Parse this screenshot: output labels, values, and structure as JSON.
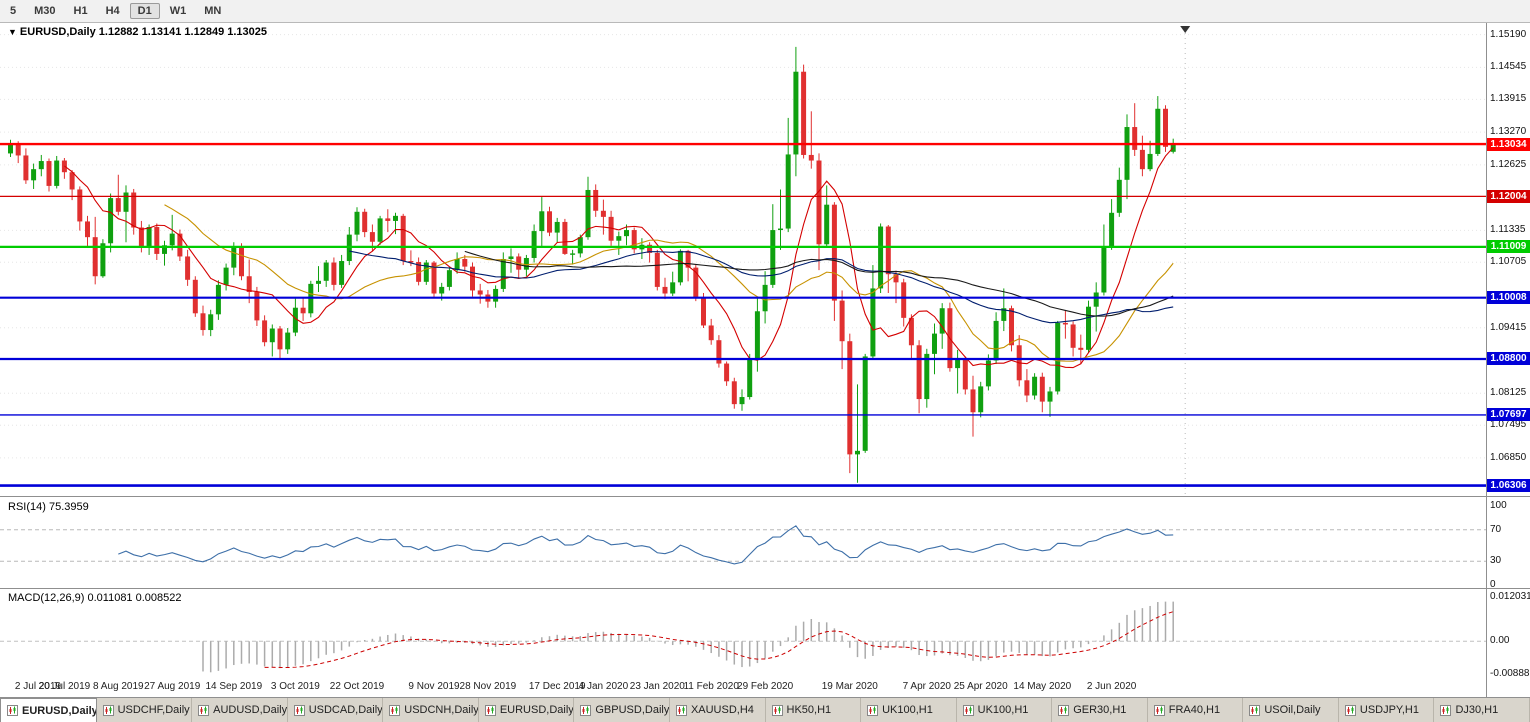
{
  "toolbar": {
    "buttons": [
      {
        "label": "5",
        "active": false
      },
      {
        "label": "M30",
        "active": false
      },
      {
        "label": "H1",
        "active": false
      },
      {
        "label": "H4",
        "active": false
      },
      {
        "label": "D1",
        "active": true
      },
      {
        "label": "W1",
        "active": false
      },
      {
        "label": "MN",
        "active": false
      }
    ]
  },
  "header": {
    "dropdown_icon": "▼",
    "symbol": "EURUSD,Daily",
    "ohlc": "1.12882 1.13141 1.12849 1.13025"
  },
  "price_axis": {
    "labels": [
      "1.15190",
      "1.14545",
      "1.13915",
      "1.13270",
      "1.12625",
      "1.11335",
      "1.10705",
      "1.09415",
      "1.08125",
      "1.07495",
      "1.06850"
    ]
  },
  "hlines": [
    {
      "price": 1.13034,
      "label": "1.13034",
      "color": "#FF0000",
      "width": 2.4
    },
    {
      "price": 1.12004,
      "label": "1.12004",
      "color": "#D40000",
      "width": 1.3
    },
    {
      "price": 1.11009,
      "label": "1.11009",
      "color": "#00CC00",
      "width": 2.2
    },
    {
      "price": 1.10008,
      "label": "1.10008",
      "color": "#0000D8",
      "width": 2.2
    },
    {
      "price": 1.088,
      "label": "1.08800",
      "color": "#0000D8",
      "width": 2.2
    },
    {
      "price": 1.07697,
      "label": "1.07697",
      "color": "#0000D8",
      "width": 1.3
    },
    {
      "price": 1.06306,
      "label": "1.06306",
      "color": "#0000D8",
      "width": 2.6
    }
  ],
  "rsi_panel": {
    "title": "RSI(14)",
    "value": "75.3959",
    "axis": [
      "100",
      "70",
      "30",
      "0"
    ],
    "axis_values": [
      100,
      70,
      30,
      0
    ],
    "levels": [
      70,
      30
    ]
  },
  "macd_panel": {
    "title": "MACD(12,26,9)",
    "value": "0.011081 0.008522",
    "axis": [
      "0.012031",
      "0.00",
      "-0.00888"
    ],
    "axis_values": [
      0.012031,
      0,
      -0.00888
    ]
  },
  "chart_data": {
    "type": "candlestick",
    "symbol": "EURUSD",
    "timeframe": "Daily",
    "current_bar": {
      "open": 1.12882,
      "high": 1.13141,
      "low": 1.12849,
      "close": 1.13025
    },
    "y_range": [
      1.061,
      1.1542
    ],
    "bull_color": "#10A010",
    "bear_color": "#E03030",
    "moving_averages": [
      {
        "period": 8,
        "color": "#D40000"
      },
      {
        "period": 21,
        "color": "#C79200"
      },
      {
        "period": 45,
        "color": "#001E6E"
      },
      {
        "period": 60,
        "color": "#1A1A1A"
      }
    ],
    "indicators": [
      {
        "type": "RSI",
        "period": 14,
        "current": 75.3959,
        "color": "#3D6FA8"
      },
      {
        "type": "MACD",
        "fast": 12,
        "slow": 26,
        "signal": 9,
        "current_macd": 0.011081,
        "current_signal": 0.008522,
        "hist_color": "#ABABAB",
        "signal_color": "#CC0000",
        "scale_max": 0.012031,
        "scale_min": -0.00888
      }
    ],
    "x_labels": [
      {
        "label": "2 Jul 2019",
        "i": 1
      },
      {
        "label": "20 Jul 2019",
        "i": 7
      },
      {
        "label": "8 Aug 2019",
        "i": 14
      },
      {
        "label": "27 Aug 2019",
        "i": 21
      },
      {
        "label": "14 Sep 2019",
        "i": 29
      },
      {
        "label": "3 Oct 2019",
        "i": 37
      },
      {
        "label": "22 Oct 2019",
        "i": 45
      },
      {
        "label": "9 Nov 2019",
        "i": 55
      },
      {
        "label": "28 Nov 2019",
        "i": 62
      },
      {
        "label": "17 Dec 2019",
        "i": 71
      },
      {
        "label": "4 Jan 2020",
        "i": 77
      },
      {
        "label": "23 Jan 2020",
        "i": 84
      },
      {
        "label": "11 Feb 2020",
        "i": 91
      },
      {
        "label": "29 Feb 2020",
        "i": 98
      },
      {
        "label": "19 Mar 2020",
        "i": 109
      },
      {
        "label": "7 Apr 2020",
        "i": 119
      },
      {
        "label": "25 Apr 2020",
        "i": 126
      },
      {
        "label": "14 May 2020",
        "i": 134
      },
      {
        "label": "2 Jun 2020",
        "i": 143
      }
    ],
    "candles": [
      [
        1.1285,
        1.1312,
        1.1278,
        1.1305
      ],
      [
        1.1305,
        1.1309,
        1.1266,
        1.1281
      ],
      [
        1.1281,
        1.1295,
        1.1225,
        1.1232
      ],
      [
        1.1232,
        1.1265,
        1.1215,
        1.1254
      ],
      [
        1.1254,
        1.1282,
        1.124,
        1.127
      ],
      [
        1.127,
        1.1275,
        1.121,
        1.1221
      ],
      [
        1.1221,
        1.128,
        1.1216,
        1.1271
      ],
      [
        1.1271,
        1.1276,
        1.1235,
        1.1248
      ],
      [
        1.1248,
        1.1252,
        1.1193,
        1.1214
      ],
      [
        1.1214,
        1.122,
        1.1133,
        1.1151
      ],
      [
        1.1151,
        1.1162,
        1.1101,
        1.112
      ],
      [
        1.112,
        1.116,
        1.1027,
        1.1043
      ],
      [
        1.1043,
        1.1116,
        1.104,
        1.1108
      ],
      [
        1.1108,
        1.1206,
        1.109,
        1.1197
      ],
      [
        1.1197,
        1.1243,
        1.1163,
        1.117
      ],
      [
        1.117,
        1.1222,
        1.111,
        1.1208
      ],
      [
        1.1208,
        1.1215,
        1.1125,
        1.1139
      ],
      [
        1.1139,
        1.1152,
        1.109,
        1.1099
      ],
      [
        1.1099,
        1.1145,
        1.1085,
        1.114
      ],
      [
        1.114,
        1.1147,
        1.1075,
        1.1087
      ],
      [
        1.1087,
        1.1113,
        1.1064,
        1.1104
      ],
      [
        1.1104,
        1.1164,
        1.1094,
        1.1127
      ],
      [
        1.1127,
        1.1135,
        1.1073,
        1.1082
      ],
      [
        1.1082,
        1.1095,
        1.1024,
        1.1036
      ],
      [
        1.1036,
        1.1043,
        1.0963,
        1.097
      ],
      [
        1.097,
        1.0985,
        1.0926,
        1.0937
      ],
      [
        1.0937,
        1.0977,
        1.0925,
        1.0968
      ],
      [
        1.0968,
        1.1035,
        1.0957,
        1.1026
      ],
      [
        1.1026,
        1.1068,
        1.1015,
        1.106
      ],
      [
        1.106,
        1.111,
        1.1045,
        1.1101
      ],
      [
        1.1101,
        1.1108,
        1.1035,
        1.1043
      ],
      [
        1.1043,
        1.1076,
        1.099,
        1.1012
      ],
      [
        1.1012,
        1.1022,
        1.0945,
        1.0956
      ],
      [
        1.0956,
        1.0966,
        1.0905,
        1.0913
      ],
      [
        1.0913,
        1.0948,
        1.0885,
        1.094
      ],
      [
        1.094,
        1.0945,
        1.0879,
        1.0899
      ],
      [
        1.0899,
        1.0941,
        1.089,
        1.0932
      ],
      [
        1.0932,
        1.0999,
        1.0925,
        1.0981
      ],
      [
        1.0981,
        1.1,
        1.0955,
        1.097
      ],
      [
        1.097,
        1.1034,
        1.0962,
        1.1028
      ],
      [
        1.1028,
        1.1063,
        1.1012,
        1.1034
      ],
      [
        1.1034,
        1.1075,
        1.1022,
        1.107
      ],
      [
        1.107,
        1.108,
        1.1015,
        1.1026
      ],
      [
        1.1026,
        1.1085,
        1.102,
        1.1073
      ],
      [
        1.1073,
        1.114,
        1.1065,
        1.1125
      ],
      [
        1.1125,
        1.1179,
        1.1112,
        1.117
      ],
      [
        1.117,
        1.1176,
        1.112,
        1.113
      ],
      [
        1.113,
        1.1145,
        1.1092,
        1.1111
      ],
      [
        1.1111,
        1.1162,
        1.1105,
        1.1157
      ],
      [
        1.1157,
        1.1175,
        1.113,
        1.1152
      ],
      [
        1.1152,
        1.1168,
        1.1126,
        1.1162
      ],
      [
        1.1162,
        1.1166,
        1.1065,
        1.1073
      ],
      [
        1.1073,
        1.1094,
        1.1063,
        1.1071
      ],
      [
        1.1071,
        1.108,
        1.1025,
        1.1032
      ],
      [
        1.1032,
        1.1075,
        1.1026,
        1.107
      ],
      [
        1.107,
        1.1073,
        1.1,
        1.1009
      ],
      [
        1.1009,
        1.103,
        1.0995,
        1.1022
      ],
      [
        1.1022,
        1.1062,
        1.1015,
        1.1055
      ],
      [
        1.1055,
        1.109,
        1.1048,
        1.1077
      ],
      [
        1.1077,
        1.1085,
        1.1052,
        1.1062
      ],
      [
        1.1062,
        1.107,
        1.1003,
        1.1015
      ],
      [
        1.1015,
        1.1028,
        1.0989,
        1.1007
      ],
      [
        1.1007,
        1.1016,
        1.0981,
        1.0993
      ],
      [
        1.0993,
        1.1025,
        1.0981,
        1.1018
      ],
      [
        1.1018,
        1.109,
        1.1012,
        1.1077
      ],
      [
        1.1077,
        1.1098,
        1.105,
        1.1082
      ],
      [
        1.1082,
        1.1088,
        1.104,
        1.1056
      ],
      [
        1.1056,
        1.1085,
        1.1043,
        1.1079
      ],
      [
        1.1079,
        1.1145,
        1.107,
        1.1132
      ],
      [
        1.1132,
        1.1199,
        1.1102,
        1.1171
      ],
      [
        1.1171,
        1.118,
        1.1122,
        1.1129
      ],
      [
        1.1129,
        1.1158,
        1.111,
        1.115
      ],
      [
        1.115,
        1.1156,
        1.1085,
        1.1087
      ],
      [
        1.1087,
        1.1095,
        1.1066,
        1.1088
      ],
      [
        1.1088,
        1.1125,
        1.108,
        1.112
      ],
      [
        1.112,
        1.1239,
        1.1115,
        1.1213
      ],
      [
        1.1213,
        1.1224,
        1.116,
        1.1172
      ],
      [
        1.1172,
        1.1194,
        1.1125,
        1.116
      ],
      [
        1.116,
        1.1172,
        1.1103,
        1.1113
      ],
      [
        1.1113,
        1.1131,
        1.1085,
        1.1122
      ],
      [
        1.1122,
        1.1145,
        1.1104,
        1.1134
      ],
      [
        1.1134,
        1.1139,
        1.1088,
        1.1096
      ],
      [
        1.1096,
        1.1118,
        1.1077,
        1.1105
      ],
      [
        1.1105,
        1.111,
        1.107,
        1.1089
      ],
      [
        1.1089,
        1.1095,
        1.1015,
        1.1022
      ],
      [
        1.1022,
        1.104,
        1.0998,
        1.1009
      ],
      [
        1.1009,
        1.1052,
        1.1004,
        1.1031
      ],
      [
        1.1031,
        1.1096,
        1.1025,
        1.1093
      ],
      [
        1.1093,
        1.1095,
        1.1033,
        1.106
      ],
      [
        1.106,
        1.1065,
        1.0994,
        1.1
      ],
      [
        1.1,
        1.101,
        1.0941,
        1.0946
      ],
      [
        1.0946,
        1.0959,
        1.0908,
        1.0917
      ],
      [
        1.0917,
        1.0927,
        1.0863,
        1.0871
      ],
      [
        1.0871,
        1.0875,
        1.0827,
        1.0836
      ],
      [
        1.0836,
        1.0843,
        1.0782,
        1.0791
      ],
      [
        1.0791,
        1.082,
        1.0778,
        1.0805
      ],
      [
        1.0805,
        1.089,
        1.08,
        1.088
      ],
      [
        1.088,
        1.1,
        1.0855,
        1.0974
      ],
      [
        1.0974,
        1.1053,
        1.095,
        1.1026
      ],
      [
        1.1026,
        1.1185,
        1.102,
        1.1134
      ],
      [
        1.1134,
        1.1214,
        1.1095,
        1.1137
      ],
      [
        1.1137,
        1.1355,
        1.113,
        1.1283
      ],
      [
        1.1283,
        1.1495,
        1.124,
        1.1446
      ],
      [
        1.1446,
        1.146,
        1.1275,
        1.1282
      ],
      [
        1.1282,
        1.1368,
        1.1255,
        1.1271
      ],
      [
        1.1271,
        1.1285,
        1.1055,
        1.1106
      ],
      [
        1.1106,
        1.1222,
        1.11,
        1.1184
      ],
      [
        1.1184,
        1.1189,
        1.0955,
        1.0995
      ],
      [
        1.0995,
        1.1015,
        1.086,
        1.0915
      ],
      [
        1.0915,
        1.093,
        1.0655,
        1.0692
      ],
      [
        1.0692,
        1.083,
        1.0636,
        1.0699
      ],
      [
        1.0699,
        1.089,
        1.0695,
        1.0885
      ],
      [
        1.0885,
        1.1065,
        1.088,
        1.1019
      ],
      [
        1.1019,
        1.1147,
        1.101,
        1.1141
      ],
      [
        1.1141,
        1.1144,
        1.101,
        1.1047
      ],
      [
        1.1047,
        1.1054,
        1.099,
        1.1031
      ],
      [
        1.1031,
        1.1038,
        1.0944,
        1.0961
      ],
      [
        1.0961,
        1.0968,
        1.088,
        1.0907
      ],
      [
        1.0907,
        1.0917,
        1.0773,
        1.0801
      ],
      [
        1.0801,
        1.09,
        1.0784,
        1.089
      ],
      [
        1.089,
        1.095,
        1.085,
        1.093
      ],
      [
        1.093,
        1.099,
        1.09,
        1.098
      ],
      [
        1.098,
        1.0991,
        1.0855,
        1.0862
      ],
      [
        1.0862,
        1.0898,
        1.0812,
        1.0879
      ],
      [
        1.0879,
        1.0885,
        1.081,
        1.082
      ],
      [
        1.082,
        1.0847,
        1.0727,
        1.0775
      ],
      [
        1.0775,
        1.0835,
        1.0765,
        1.0826
      ],
      [
        1.0826,
        1.0889,
        1.0818,
        1.0877
      ],
      [
        1.0877,
        1.0972,
        1.087,
        1.0955
      ],
      [
        1.0955,
        1.1019,
        1.0935,
        1.098
      ],
      [
        1.098,
        1.0985,
        1.0895,
        1.0907
      ],
      [
        1.0907,
        1.0927,
        1.0826,
        1.0838
      ],
      [
        1.0838,
        1.086,
        1.0795,
        1.0808
      ],
      [
        1.0808,
        1.0852,
        1.08,
        1.0845
      ],
      [
        1.0845,
        1.0853,
        1.0775,
        1.0796
      ],
      [
        1.0796,
        1.0825,
        1.0766,
        1.0816
      ],
      [
        1.0816,
        1.0955,
        1.081,
        1.0951
      ],
      [
        1.0951,
        1.0976,
        1.092,
        1.0948
      ],
      [
        1.0948,
        1.0954,
        1.0885,
        1.0902
      ],
      [
        1.0902,
        1.0928,
        1.087,
        1.0898
      ],
      [
        1.0898,
        1.0995,
        1.0892,
        1.0983
      ],
      [
        1.0983,
        1.1031,
        1.0934,
        1.1011
      ],
      [
        1.1011,
        1.1145,
        1.1005,
        1.1102
      ],
      [
        1.1102,
        1.1195,
        1.1095,
        1.1168
      ],
      [
        1.1168,
        1.1257,
        1.116,
        1.1233
      ],
      [
        1.1233,
        1.1362,
        1.1195,
        1.1337
      ],
      [
        1.1337,
        1.1384,
        1.128,
        1.1292
      ],
      [
        1.1292,
        1.132,
        1.124,
        1.1254
      ],
      [
        1.1254,
        1.131,
        1.125,
        1.1284
      ],
      [
        1.1284,
        1.1398,
        1.128,
        1.1373
      ],
      [
        1.1373,
        1.138,
        1.1288,
        1.1298
      ],
      [
        1.12882,
        1.13141,
        1.12849,
        1.13025
      ]
    ]
  },
  "tabs": {
    "active_index": 0,
    "items": [
      "EURUSD,Daily",
      "USDCHF,Daily",
      "AUDUSD,Daily",
      "USDCAD,Daily",
      "USDCNH,Daily",
      "EURUSD,Daily",
      "GBPUSD,Daily",
      "XAUUSD,H4",
      "HK50,H1",
      "UK100,H1",
      "UK100,H1",
      "GER30,H1",
      "FRA40,H1",
      "USOil,Daily",
      "USDJPY,H1",
      "DJ30,H1"
    ]
  }
}
